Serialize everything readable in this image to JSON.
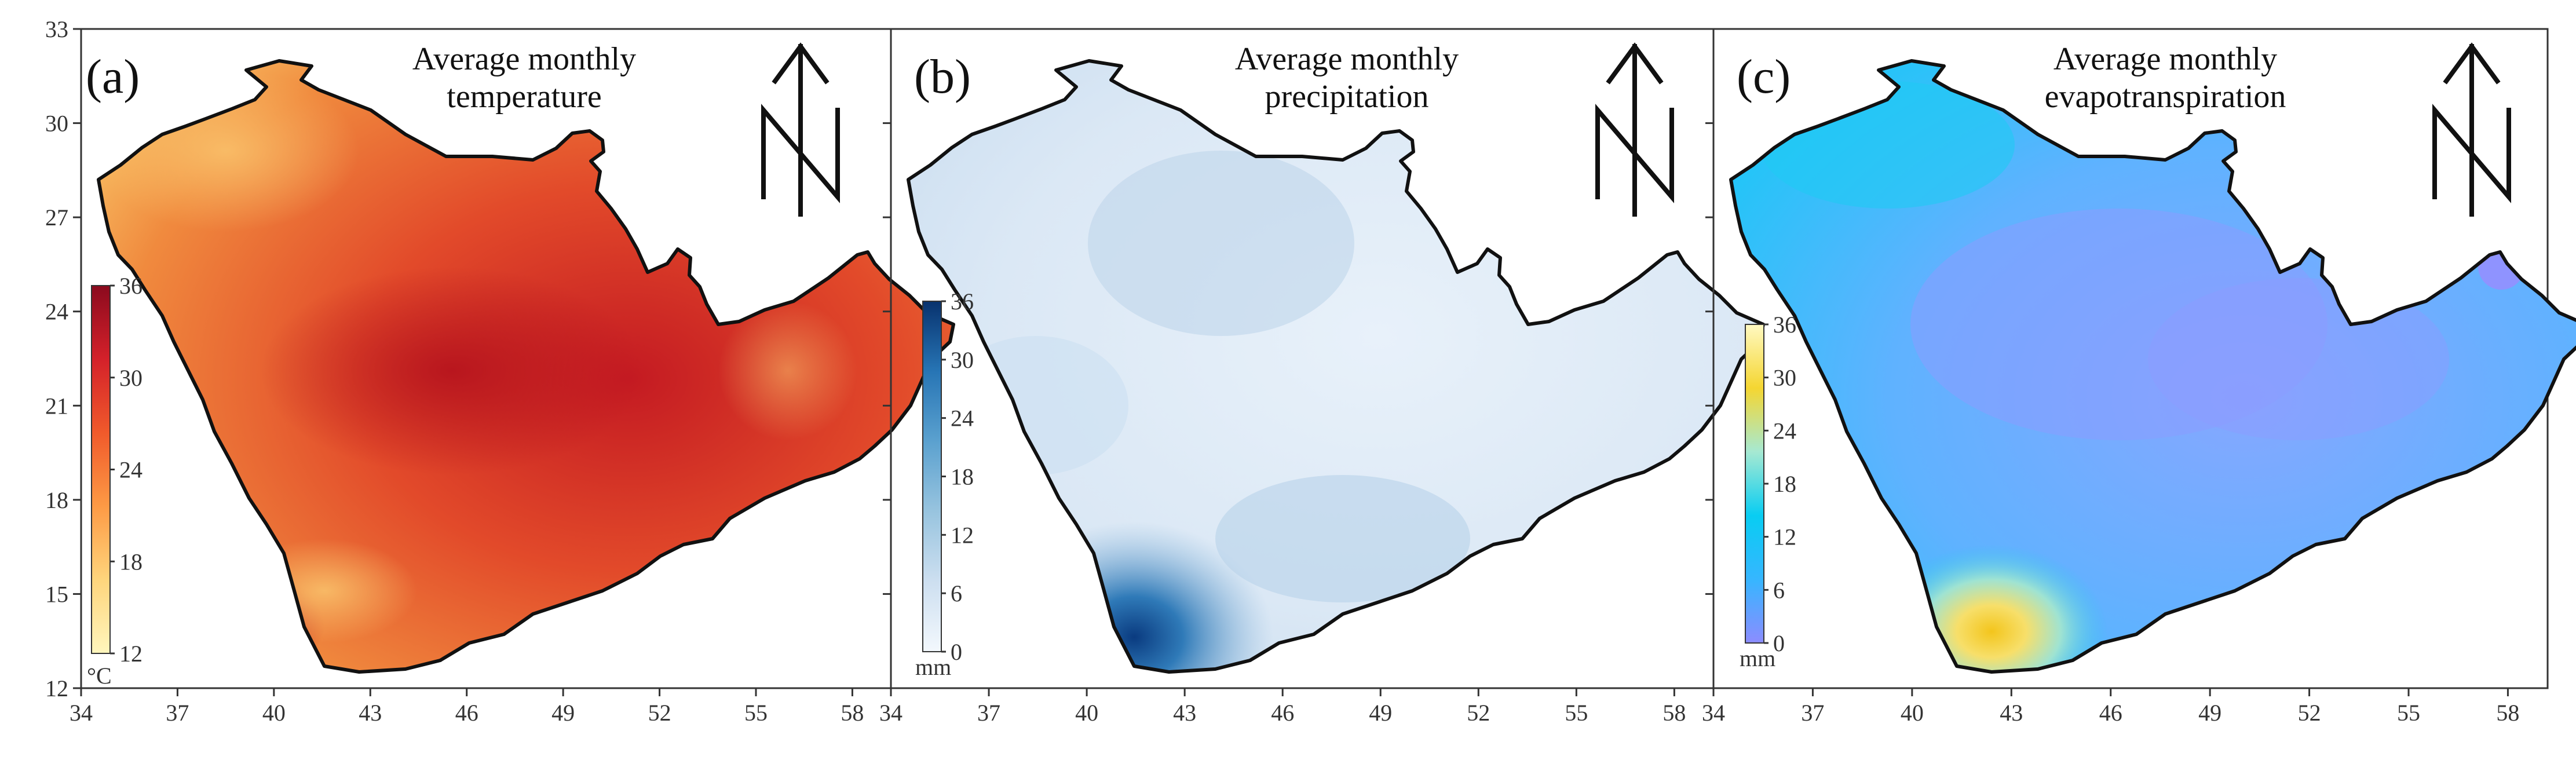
{
  "figure": {
    "type": "choropleth-map-panels",
    "region": "Arabian Peninsula",
    "longitude_ticks": [
      "34",
      "37",
      "40",
      "43",
      "46",
      "49",
      "52",
      "55",
      "58"
    ],
    "latitude_ticks": [
      "33",
      "30",
      "27",
      "24",
      "21",
      "18",
      "15",
      "12"
    ],
    "panels": [
      {
        "letter": "(a)",
        "title_line1": "Average monthly",
        "title_line2": "temperature",
        "colorbar": {
          "unit": "°C",
          "ticks": [
            "36",
            "30",
            "24",
            "18",
            "12"
          ],
          "min": 12,
          "max": 36,
          "colors": [
            "#fff6bd",
            "#fed57c",
            "#fd9a45",
            "#f05a2b",
            "#d4212a",
            "#8b0a1e"
          ]
        },
        "land_fill": [
          "#f3a14a",
          "#e6512b",
          "#cd1f25"
        ]
      },
      {
        "letter": "(b)",
        "title_line1": "Average monthly",
        "title_line2": "precipitation",
        "colorbar": {
          "unit": "mm",
          "ticks": [
            "36",
            "30",
            "24",
            "18",
            "12",
            "6",
            "0"
          ],
          "min": 0,
          "max": 36,
          "colors": [
            "#f3f8fd",
            "#cddff0",
            "#98c4df",
            "#5ba1cf",
            "#2775b5",
            "#08326e"
          ]
        },
        "land_fill": [
          "#eaf2fb",
          "#d8e7f5",
          "#0d448a"
        ]
      },
      {
        "letter": "(c)",
        "title_line1": "Average monthly",
        "title_line2": "evapotranspiration",
        "colorbar": {
          "unit": "mm",
          "ticks": [
            "36",
            "30",
            "24",
            "18",
            "12",
            "6",
            "0"
          ],
          "min": 0,
          "max": 36,
          "colors": [
            "#8c8cff",
            "#36b6ff",
            "#08cdf2",
            "#a6e9d2",
            "#f5d631",
            "#fff9c2"
          ]
        },
        "land_fill": [
          "#7fa8ff",
          "#1cc6f8",
          "#f0c814"
        ]
      }
    ]
  }
}
